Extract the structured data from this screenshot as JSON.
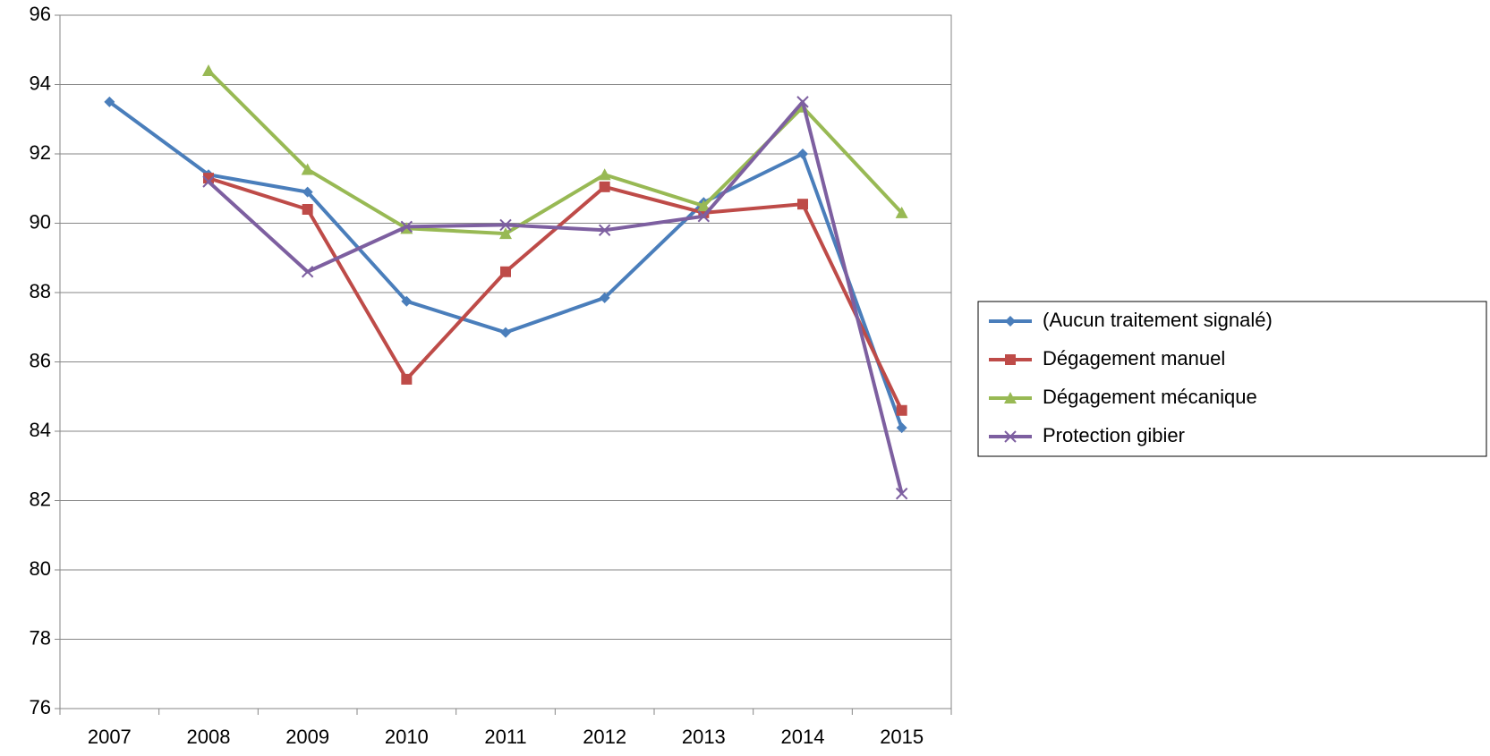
{
  "chart_data": {
    "type": "line",
    "categories": [
      "2007",
      "2008",
      "2009",
      "2010",
      "2011",
      "2012",
      "2013",
      "2014",
      "2015"
    ],
    "series": [
      {
        "name": "(Aucun traitement signalé)",
        "color": "#4a7ebb",
        "marker": "diamond",
        "values": [
          93.5,
          91.4,
          90.9,
          87.75,
          86.85,
          87.85,
          90.6,
          92.0,
          84.1
        ]
      },
      {
        "name": "Dégagement manuel",
        "color": "#be4b48",
        "marker": "square",
        "values": [
          null,
          91.3,
          90.4,
          85.5,
          88.6,
          91.05,
          90.3,
          90.55,
          84.6
        ]
      },
      {
        "name": "Dégagement mécanique",
        "color": "#98b954",
        "marker": "triangle",
        "values": [
          null,
          94.4,
          91.55,
          89.85,
          89.7,
          91.4,
          90.5,
          93.35,
          90.3
        ]
      },
      {
        "name": "Protection gibier",
        "color": "#7d5fa0",
        "marker": "x",
        "values": [
          null,
          91.2,
          88.6,
          89.9,
          89.95,
          89.8,
          90.2,
          93.5,
          82.2
        ]
      }
    ],
    "ylim": [
      76,
      96
    ],
    "yticks": [
      76,
      78,
      80,
      82,
      84,
      86,
      88,
      90,
      92,
      94,
      96
    ],
    "grid": true,
    "legend": "right"
  }
}
